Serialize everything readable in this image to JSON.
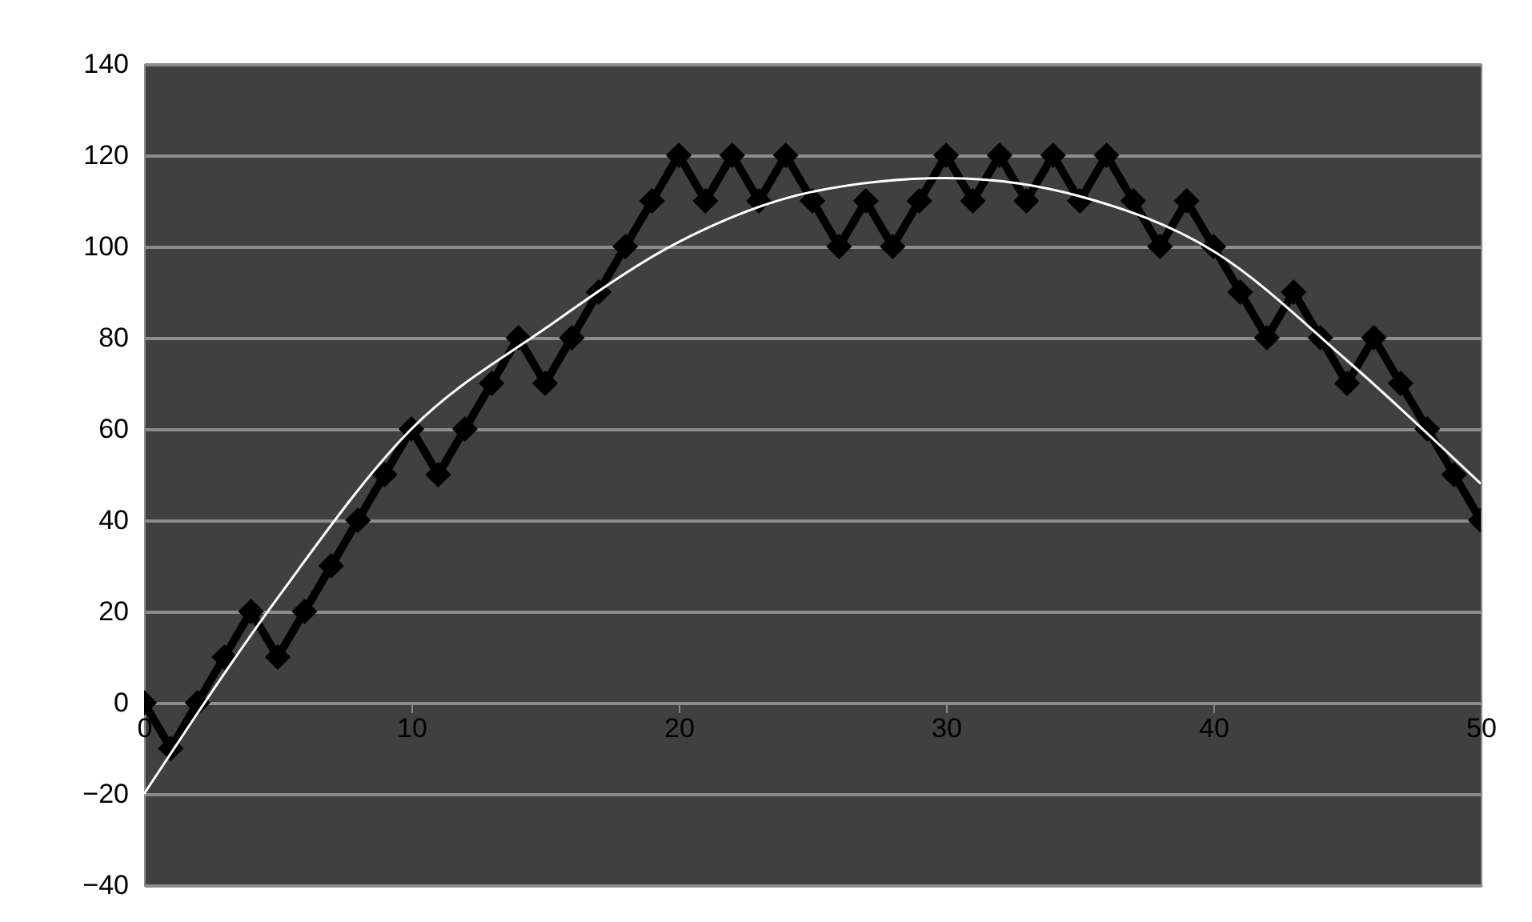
{
  "chart_data": {
    "type": "line",
    "xlim": [
      0,
      50
    ],
    "xticks": [
      0,
      10,
      20,
      30,
      40,
      50
    ],
    "ylim": [
      -40,
      140
    ],
    "yticks": [
      -40,
      -20,
      0,
      20,
      40,
      60,
      80,
      100,
      120,
      140
    ],
    "grid": "y",
    "marker": "diamond",
    "series": [
      {
        "color": "#000000",
        "x": [
          0,
          1,
          2,
          3,
          4,
          5,
          6,
          7,
          8,
          9,
          10,
          11,
          12,
          13,
          14,
          15,
          16,
          17,
          18,
          19,
          20,
          21,
          22,
          23,
          24,
          25,
          26,
          27,
          28,
          29,
          30,
          31,
          32,
          33,
          34,
          35,
          36,
          37,
          38,
          39,
          40,
          41,
          42,
          43,
          44,
          45,
          46,
          47,
          48,
          49,
          50
        ],
        "values": [
          0,
          -10,
          0,
          10,
          20,
          10,
          20,
          30,
          40,
          50,
          60,
          50,
          60,
          70,
          80,
          70,
          80,
          90,
          100,
          110,
          120,
          110,
          120,
          110,
          120,
          110,
          100,
          110,
          100,
          110,
          120,
          110,
          120,
          110,
          120,
          110,
          120,
          110,
          100,
          110,
          100,
          90,
          80,
          90,
          80,
          70,
          80,
          70,
          60,
          50,
          40
        ]
      },
      {
        "type": "line",
        "color": "#ffffff",
        "marker": "none",
        "x": [
          0,
          5,
          10,
          15,
          20,
          25,
          30,
          35,
          40,
          45,
          50
        ],
        "values": [
          -20,
          23,
          60,
          82,
          101,
          112,
          115,
          111,
          99,
          75,
          48
        ]
      }
    ]
  }
}
